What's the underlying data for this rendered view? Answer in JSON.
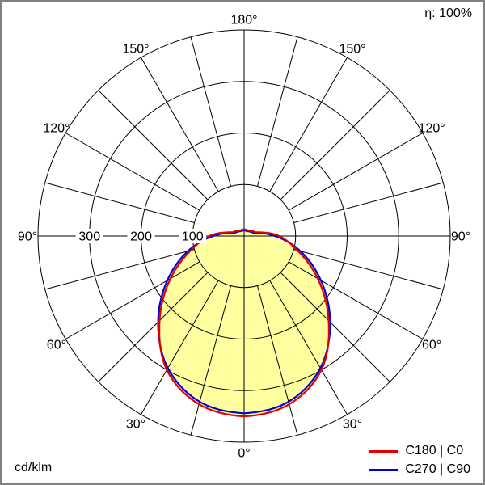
{
  "chart_data": {
    "type": "line",
    "polar": true,
    "angle_zero": "bottom",
    "efficiency": "η: 100%",
    "unit": "cd/klm",
    "radial_ticks": [
      100,
      200,
      300
    ],
    "radial_max": 400,
    "angle_labels_deg": [
      0,
      30,
      60,
      90,
      120,
      150,
      180
    ],
    "spoke_step_deg": 15,
    "gamma_deg": [
      0,
      15,
      30,
      45,
      60,
      75,
      90,
      105,
      120,
      135,
      150,
      165,
      180
    ],
    "series": [
      {
        "name": "C180 | C0",
        "color": "#e10000",
        "values": [
          350,
          338,
          300,
          232,
          165,
          107,
          68,
          28,
          19,
          15,
          13,
          13,
          13
        ]
      },
      {
        "name": "C270 | C90",
        "color": "#0000dd",
        "values": [
          344,
          333,
          296,
          236,
          172,
          113,
          60,
          24,
          16,
          13,
          11,
          11,
          11
        ]
      }
    ],
    "fill_color": "#ffffa0",
    "grid_color": "#000000"
  }
}
